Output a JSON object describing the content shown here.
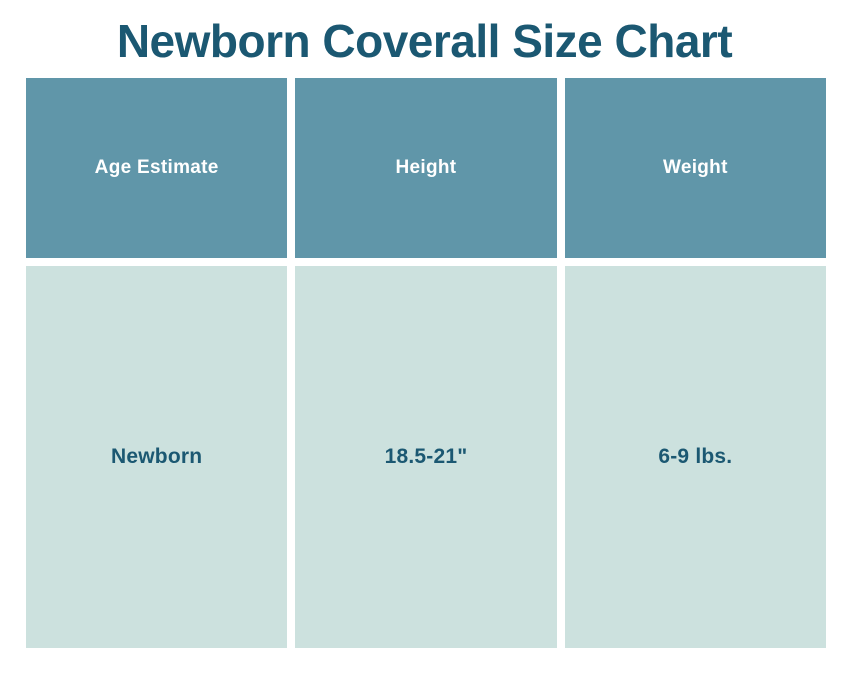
{
  "chart_data": {
    "type": "table",
    "title": "Newborn Coverall Size Chart",
    "columns": [
      "Age Estimate",
      "Height",
      "Weight"
    ],
    "rows": [
      [
        "Newborn",
        "18.5-21\"",
        "6-9 lbs."
      ]
    ]
  },
  "colors": {
    "background": "#ffffff",
    "title_text": "#1b5872",
    "header_bg": "#6096a9",
    "header_text": "#ffffff",
    "body_bg": "#cce1de",
    "body_text": "#1b5872"
  }
}
